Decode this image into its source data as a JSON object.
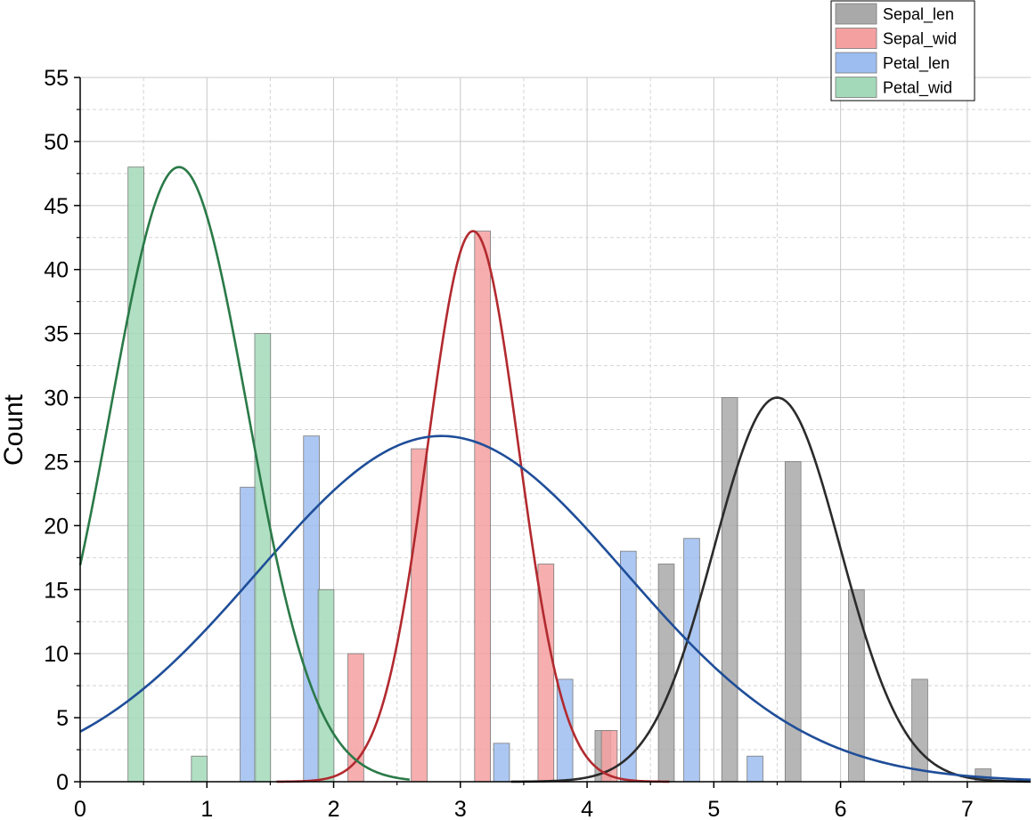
{
  "chart_data": {
    "type": "bar",
    "title": "",
    "xlabel": "",
    "ylabel": "Count",
    "xlim": [
      0,
      7.5
    ],
    "ylim": [
      0,
      55
    ],
    "x_ticks": [
      0,
      1,
      2,
      3,
      4,
      5,
      6,
      7
    ],
    "y_ticks": [
      0,
      5,
      10,
      15,
      20,
      25,
      30,
      35,
      40,
      45,
      50,
      55
    ],
    "grid": true,
    "legend_position": "top-right",
    "series": [
      {
        "name": "Sepal_len",
        "color": "#a9a9a9",
        "curve_color": "#2b2b2b",
        "bars": [
          {
            "x": 4.125,
            "y": 4
          },
          {
            "x": 4.625,
            "y": 17
          },
          {
            "x": 5.125,
            "y": 30
          },
          {
            "x": 5.625,
            "y": 25
          },
          {
            "x": 6.125,
            "y": 15
          },
          {
            "x": 6.625,
            "y": 8
          },
          {
            "x": 7.125,
            "y": 1
          }
        ],
        "fit": {
          "mean": 5.5,
          "sd": 0.5,
          "peak": 30,
          "x_range": [
            3.4,
            7.6
          ]
        }
      },
      {
        "name": "Sepal_wid",
        "color": "#f4a0a0",
        "curve_color": "#b22a2f",
        "bars": [
          {
            "x": 2.175,
            "y": 10
          },
          {
            "x": 2.675,
            "y": 26
          },
          {
            "x": 3.175,
            "y": 43
          },
          {
            "x": 3.675,
            "y": 17
          },
          {
            "x": 4.175,
            "y": 4
          }
        ],
        "fit": {
          "mean": 3.1,
          "sd": 0.36,
          "peak": 43,
          "x_range": [
            1.55,
            4.65
          ]
        }
      },
      {
        "name": "Petal_len",
        "color": "#9dbdf0",
        "curve_color": "#1f4e99",
        "bars": [
          {
            "x": 1.325,
            "y": 23
          },
          {
            "x": 1.825,
            "y": 27
          },
          {
            "x": 3.325,
            "y": 3
          },
          {
            "x": 3.825,
            "y": 8
          },
          {
            "x": 4.325,
            "y": 18
          },
          {
            "x": 4.825,
            "y": 19
          },
          {
            "x": 5.325,
            "y": 2
          }
        ],
        "fit": {
          "mean": 2.85,
          "sd": 1.45,
          "peak": 27,
          "x_range": [
            0,
            7.5
          ]
        }
      },
      {
        "name": "Petal_wid",
        "color": "#a3d9b9",
        "curve_color": "#2a7a48",
        "bars": [
          {
            "x": 0.44,
            "y": 48
          },
          {
            "x": 0.94,
            "y": 2
          },
          {
            "x": 1.44,
            "y": 35
          },
          {
            "x": 1.94,
            "y": 15
          }
        ],
        "fit": {
          "mean": 0.78,
          "sd": 0.54,
          "peak": 48,
          "x_range": [
            0,
            2.6
          ]
        }
      }
    ]
  }
}
